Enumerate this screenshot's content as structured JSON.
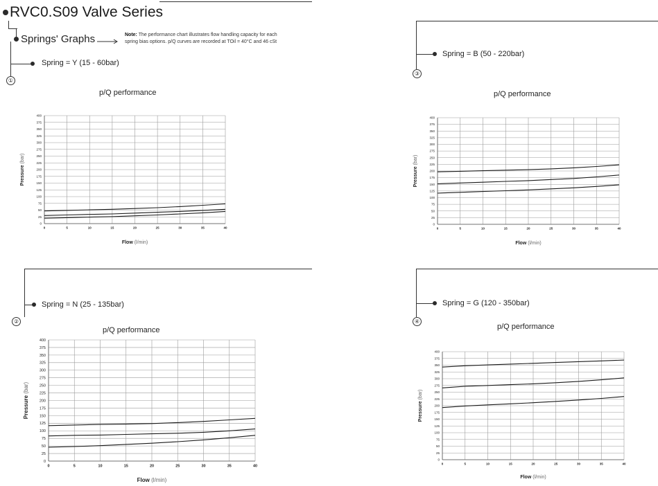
{
  "header": {
    "title": "RVC0.S09 Valve Series",
    "subtitle": "Springs' Graphs",
    "note_bold": "Note:",
    "note_line1": " The performance chart illustrates flow handling capacity for each",
    "note_line2": "spring bias options.  p/Q curves are recorded at TOil = 40°C and 46 cSt"
  },
  "panels": [
    {
      "num": "①",
      "spring": "Spring = Y (15 - 60bar)",
      "chart_title": "p/Q performance"
    },
    {
      "num": "③",
      "spring": "Spring = B (50 - 220bar)",
      "chart_title": "p/Q performance"
    },
    {
      "num": "②",
      "spring": "Spring = N (25 - 135bar)",
      "chart_title": "p/Q performance"
    },
    {
      "num": "④",
      "spring": "Spring = G (120 - 350bar)",
      "chart_title": "p/Q performance"
    }
  ],
  "colors": {
    "line": "#1a1a1a",
    "grid": "#9a9a9a",
    "accent": "#333333"
  },
  "chart_data": [
    {
      "type": "line",
      "title": "p/Q performance",
      "xlabel_bold": "Flow",
      "xlabel_unit": "(l/min)",
      "ylabel_bold": "Pressure",
      "ylabel_unit": "(bar)",
      "xlim": [
        0,
        40
      ],
      "ylim": [
        0,
        400
      ],
      "xticks": [
        0,
        5,
        10,
        15,
        20,
        25,
        30,
        35,
        40
      ],
      "yticks": [
        0,
        25,
        50,
        75,
        100,
        125,
        150,
        175,
        200,
        225,
        250,
        275,
        300,
        325,
        350,
        375,
        400
      ],
      "grid": true,
      "x": [
        0,
        5,
        10,
        15,
        20,
        25,
        30,
        35,
        40
      ],
      "series": [
        {
          "values": [
            47,
            49,
            51,
            53,
            56,
            59,
            63,
            68,
            73
          ]
        },
        {
          "values": [
            30,
            32,
            34,
            36,
            39,
            42,
            45,
            49,
            53
          ]
        },
        {
          "values": [
            20,
            22,
            24,
            26,
            29,
            32,
            36,
            40,
            45
          ]
        }
      ]
    },
    {
      "type": "line",
      "title": "p/Q performance",
      "xlabel_bold": "Flow",
      "xlabel_unit": "(l/min)",
      "ylabel_bold": "Pressure",
      "ylabel_unit": "(bar)",
      "xlim": [
        0,
        40
      ],
      "ylim": [
        0,
        400
      ],
      "xticks": [
        0,
        5,
        10,
        15,
        20,
        25,
        30,
        35,
        40
      ],
      "yticks": [
        0,
        25,
        50,
        75,
        100,
        125,
        150,
        175,
        200,
        225,
        250,
        275,
        300,
        325,
        350,
        375,
        400
      ],
      "grid": true,
      "x": [
        0,
        5,
        10,
        15,
        20,
        25,
        30,
        35,
        40
      ],
      "series": [
        {
          "values": [
            197,
            199,
            201,
            203,
            205,
            208,
            212,
            217,
            223
          ]
        },
        {
          "values": [
            152,
            155,
            158,
            161,
            164,
            168,
            172,
            178,
            185
          ]
        },
        {
          "values": [
            117,
            120,
            123,
            126,
            129,
            133,
            137,
            142,
            148
          ]
        }
      ]
    },
    {
      "type": "line",
      "title": "p/Q performance",
      "xlabel_bold": "Flow",
      "xlabel_unit": "(l/min)",
      "ylabel_bold": "Pressure",
      "ylabel_unit": "(bar)",
      "xlim": [
        0,
        40
      ],
      "ylim": [
        0,
        400
      ],
      "xticks": [
        0,
        5,
        10,
        15,
        20,
        25,
        30,
        35,
        40
      ],
      "yticks": [
        0,
        25,
        50,
        75,
        100,
        125,
        150,
        175,
        200,
        225,
        250,
        275,
        300,
        325,
        350,
        375,
        400
      ],
      "grid": true,
      "x": [
        0,
        5,
        10,
        15,
        20,
        25,
        30,
        35,
        40
      ],
      "series": [
        {
          "values": [
            117,
            119,
            121,
            122,
            124,
            127,
            131,
            136,
            141
          ]
        },
        {
          "values": [
            83,
            85,
            86,
            88,
            90,
            92,
            95,
            100,
            106
          ]
        },
        {
          "values": [
            46,
            48,
            51,
            55,
            59,
            64,
            70,
            77,
            85
          ]
        }
      ]
    },
    {
      "type": "line",
      "title": "p/Q performance",
      "xlabel_bold": "Flow",
      "xlabel_unit": "(l/min)",
      "ylabel_bold": "Pressure",
      "ylabel_unit": "(bar)",
      "xlim": [
        0,
        40
      ],
      "ylim": [
        0,
        400
      ],
      "xticks": [
        0,
        5,
        10,
        15,
        20,
        25,
        30,
        35,
        40
      ],
      "yticks": [
        0,
        25,
        50,
        75,
        100,
        125,
        150,
        175,
        200,
        225,
        250,
        275,
        300,
        325,
        350,
        375,
        400
      ],
      "grid": true,
      "x": [
        0,
        5,
        10,
        15,
        20,
        25,
        30,
        35,
        40
      ],
      "series": [
        {
          "values": [
            343,
            348,
            351,
            354,
            357,
            360,
            363,
            366,
            369
          ]
        },
        {
          "values": [
            266,
            272,
            275,
            278,
            281,
            285,
            290,
            296,
            303
          ]
        },
        {
          "values": [
            193,
            199,
            203,
            207,
            211,
            216,
            221,
            227,
            234
          ]
        }
      ]
    }
  ]
}
